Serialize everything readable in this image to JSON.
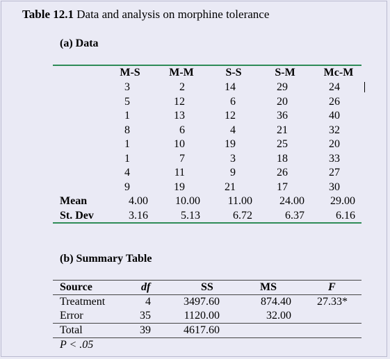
{
  "title": {
    "bold": "Table 12.1",
    "text": "Data and analysis on morphine tolerance"
  },
  "section_a": "(a) Data",
  "data_table": {
    "columns": [
      "M-S",
      "M-M",
      "S-S",
      "S-M",
      "Mc-M"
    ],
    "rows": [
      [
        "3",
        "2",
        "14",
        "29",
        "24"
      ],
      [
        "5",
        "12",
        "6",
        "20",
        "26"
      ],
      [
        "1",
        "13",
        "12",
        "36",
        "40"
      ],
      [
        "8",
        "6",
        "4",
        "21",
        "32"
      ],
      [
        "1",
        "10",
        "19",
        "25",
        "20"
      ],
      [
        "1",
        "7",
        "3",
        "18",
        "33"
      ],
      [
        "4",
        "11",
        "9",
        "26",
        "27"
      ],
      [
        "9",
        "19",
        "21",
        "17",
        "30"
      ]
    ],
    "summary_rows": [
      {
        "label": "Mean",
        "values": [
          "4.00",
          "10.00",
          "11.00",
          "24.00",
          "29.00"
        ]
      },
      {
        "label": "St. Dev",
        "values": [
          "3.16",
          "5.13",
          "6.72",
          "6.37",
          "6.16"
        ]
      }
    ]
  },
  "section_b": "(b) Summary Table",
  "summary_table": {
    "headers": [
      "Source",
      "df",
      "SS",
      "MS",
      "F"
    ],
    "rows": [
      [
        "Treatment",
        "4",
        "3497.60",
        "874.40",
        "27.33*"
      ],
      [
        "Error",
        "35",
        "1120.00",
        "32.00",
        ""
      ],
      [
        "Total",
        "39",
        "4617.60",
        "",
        ""
      ]
    ],
    "footnote": "P < .05"
  }
}
